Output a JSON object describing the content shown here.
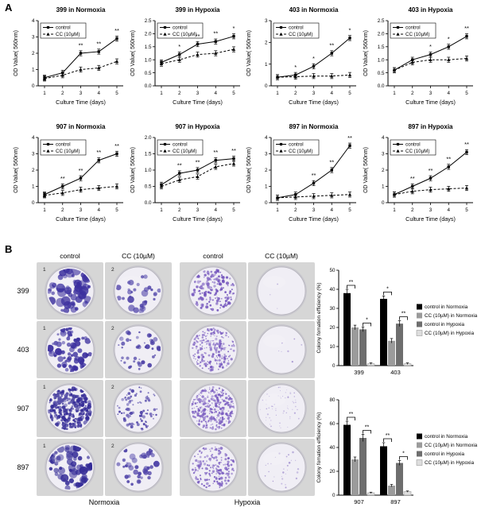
{
  "panel_a": {
    "label": "A"
  },
  "panel_b": {
    "label": "B",
    "col_headers": [
      "control",
      "CC (10µM)",
      "control",
      "CC (10µM)"
    ],
    "row_labels": [
      "399",
      "403",
      "907",
      "897"
    ],
    "group_labels": [
      "Normoxia",
      "Hypoxia"
    ],
    "dishes": [
      {
        "row": "399",
        "cells": [
          {
            "n": 55,
            "rmin": 2.0,
            "rmax": 6.0,
            "color": "#3b2f9e",
            "corner": "1"
          },
          {
            "n": 30,
            "rmin": 1.5,
            "rmax": 4.5,
            "color": "#4b3fa6",
            "corner": "2"
          },
          {
            "n": 170,
            "rmin": 0.8,
            "rmax": 2.2,
            "color": "#7050bb",
            "corner": ""
          },
          {
            "n": 3,
            "rmin": 0.5,
            "rmax": 1.0,
            "color": "#a493d0",
            "corner": ""
          }
        ]
      },
      {
        "row": "403",
        "cells": [
          {
            "n": 70,
            "rmin": 1.5,
            "rmax": 4.5,
            "color": "#3b2f9e",
            "corner": "1"
          },
          {
            "n": 42,
            "rmin": 1.0,
            "rmax": 3.2,
            "color": "#4b3fa6",
            "corner": "2"
          },
          {
            "n": 230,
            "rmin": 0.6,
            "rmax": 1.7,
            "color": "#7a5cc0",
            "corner": ""
          },
          {
            "n": 8,
            "rmin": 0.5,
            "rmax": 1.2,
            "color": "#a493d0",
            "corner": ""
          }
        ]
      },
      {
        "row": "907",
        "cells": [
          {
            "n": 260,
            "rmin": 1.0,
            "rmax": 2.8,
            "color": "#352c97",
            "corner": "1"
          },
          {
            "n": 90,
            "rmin": 0.8,
            "rmax": 2.2,
            "color": "#4b3fa6",
            "corner": "2"
          },
          {
            "n": 320,
            "rmin": 0.5,
            "rmax": 1.8,
            "color": "#7a5cc0",
            "corner": ""
          },
          {
            "n": 60,
            "rmin": 0.4,
            "rmax": 1.2,
            "color": "#b3a4d8",
            "corner": ""
          }
        ]
      },
      {
        "row": "897",
        "cells": [
          {
            "n": 62,
            "rmin": 2.0,
            "rmax": 5.5,
            "color": "#352c97",
            "corner": "1"
          },
          {
            "n": 38,
            "rmin": 1.5,
            "rmax": 4.0,
            "color": "#4b3fa6",
            "corner": "2"
          },
          {
            "n": 180,
            "rmin": 0.7,
            "rmax": 1.9,
            "color": "#7a5cc0",
            "corner": ""
          },
          {
            "n": 28,
            "rmin": 0.5,
            "rmax": 1.3,
            "color": "#a493d0",
            "corner": ""
          }
        ]
      }
    ]
  },
  "chart_data": [
    {
      "type": "line",
      "title": "399 in Normoxia",
      "x": [
        1,
        2,
        3,
        4,
        5
      ],
      "xlabel": "Culture Time (days)",
      "ylabel": "OD Value( 560nm)",
      "ylim": [
        0,
        4
      ],
      "yticks": [
        0,
        1,
        2,
        3,
        4
      ],
      "series": [
        {
          "name": "control",
          "values": [
            0.5,
            0.8,
            2.0,
            2.1,
            2.9
          ]
        },
        {
          "name": "CC (10µM)",
          "values": [
            0.45,
            0.65,
            1.0,
            1.1,
            1.5
          ]
        }
      ],
      "stars": {
        "3": "**",
        "4": "**",
        "5": "**"
      }
    },
    {
      "type": "line",
      "title": "399 in Hypoxia",
      "x": [
        1,
        2,
        3,
        4,
        5
      ],
      "xlabel": "Culture Time (days)",
      "ylabel": "OD Value( 560nm)",
      "ylim": [
        0,
        2.5
      ],
      "yticks": [
        0,
        0.5,
        1,
        1.5,
        2,
        2.5
      ],
      "series": [
        {
          "name": "control",
          "values": [
            0.9,
            1.2,
            1.6,
            1.7,
            1.9
          ]
        },
        {
          "name": "CC (10µM)",
          "values": [
            0.85,
            1.0,
            1.2,
            1.25,
            1.4
          ]
        }
      ],
      "stars": {
        "2": "*",
        "3": "**",
        "4": "**",
        "5": "*"
      }
    },
    {
      "type": "line",
      "title": "403 in Normoxia",
      "x": [
        1,
        2,
        3,
        4,
        5
      ],
      "xlabel": "Culture Time (days)",
      "ylabel": "OD Value( 560nm)",
      "ylim": [
        0,
        3
      ],
      "yticks": [
        0,
        1,
        2,
        3
      ],
      "series": [
        {
          "name": "control",
          "values": [
            0.4,
            0.5,
            0.9,
            1.5,
            2.2
          ]
        },
        {
          "name": "CC (10µM)",
          "values": [
            0.4,
            0.42,
            0.45,
            0.45,
            0.5
          ]
        }
      ],
      "stars": {
        "2": "*",
        "3": "*",
        "4": "**",
        "5": "*"
      }
    },
    {
      "type": "line",
      "title": "403 in Hypoxia",
      "x": [
        1,
        2,
        3,
        4,
        5
      ],
      "xlabel": "Culture Time (days)",
      "ylabel": "OD Value( 560nm)",
      "ylim": [
        0,
        2.5
      ],
      "yticks": [
        0,
        0.5,
        1,
        1.5,
        2,
        2.5
      ],
      "series": [
        {
          "name": "control",
          "values": [
            0.6,
            1.0,
            1.2,
            1.5,
            1.9
          ]
        },
        {
          "name": "CC (10µM)",
          "values": [
            0.6,
            0.9,
            1.0,
            1.0,
            1.05
          ]
        }
      ],
      "stars": {
        "3": "*",
        "4": "*",
        "5": "**"
      }
    },
    {
      "type": "line",
      "title": "907 in Normoxia",
      "x": [
        1,
        2,
        3,
        4,
        5
      ],
      "xlabel": "Culture Time (days)",
      "ylabel": "OD Value( 560nm)",
      "ylim": [
        0,
        4
      ],
      "yticks": [
        0,
        1,
        2,
        3,
        4
      ],
      "series": [
        {
          "name": "control",
          "values": [
            0.5,
            1.0,
            1.5,
            2.6,
            3.0
          ]
        },
        {
          "name": "CC (10µM)",
          "values": [
            0.45,
            0.6,
            0.8,
            0.9,
            1.0
          ]
        }
      ],
      "stars": {
        "2": "**",
        "3": "**",
        "4": "**",
        "5": "**"
      }
    },
    {
      "type": "line",
      "title": "907 in Hypoxia",
      "x": [
        1,
        2,
        3,
        4,
        5
      ],
      "xlabel": "Culture Time (days)",
      "ylabel": "OD Value( 560nm)",
      "ylim": [
        0,
        2
      ],
      "yticks": [
        0,
        0.5,
        1,
        1.5,
        2
      ],
      "series": [
        {
          "name": "control",
          "values": [
            0.55,
            0.9,
            1.0,
            1.3,
            1.35
          ]
        },
        {
          "name": "CC (10µM)",
          "values": [
            0.5,
            0.7,
            0.8,
            1.1,
            1.2
          ]
        }
      ],
      "stars": {
        "2": "**",
        "3": "**",
        "4": "**",
        "5": "**"
      }
    },
    {
      "type": "line",
      "title": "897 in Normoxia",
      "x": [
        1,
        2,
        3,
        4,
        5
      ],
      "xlabel": "Culture Time (days)",
      "ylabel": "OD Value( 560nm)",
      "ylim": [
        0,
        4
      ],
      "yticks": [
        0,
        1,
        2,
        3,
        4
      ],
      "series": [
        {
          "name": "control",
          "values": [
            0.3,
            0.5,
            1.2,
            2.0,
            3.5
          ]
        },
        {
          "name": "CC (10µM)",
          "values": [
            0.3,
            0.35,
            0.4,
            0.45,
            0.5
          ]
        }
      ],
      "stars": {
        "3": "**",
        "4": "**",
        "5": "**"
      }
    },
    {
      "type": "line",
      "title": "897 in Hypoxia",
      "x": [
        1,
        2,
        3,
        4,
        5
      ],
      "xlabel": "Culture Time (days)",
      "ylabel": "OD Value( 560nm)",
      "ylim": [
        0,
        4
      ],
      "yticks": [
        0,
        1,
        2,
        3,
        4
      ],
      "series": [
        {
          "name": "control",
          "values": [
            0.5,
            1.0,
            1.5,
            2.2,
            3.1
          ]
        },
        {
          "name": "CC (10µM)",
          "values": [
            0.5,
            0.7,
            0.8,
            0.85,
            0.9
          ]
        }
      ],
      "stars": {
        "2": "**",
        "3": "**",
        "4": "**",
        "5": "**"
      }
    },
    {
      "type": "bar",
      "ylabel": "Colony fomation efficiency (%)",
      "categories": [
        "399",
        "403"
      ],
      "ylim": [
        0,
        50
      ],
      "yticks": [
        0,
        10,
        20,
        30,
        40,
        50
      ],
      "series": [
        {
          "name": "control in Normoxia",
          "color": "#000000",
          "values": [
            38,
            35
          ],
          "errors": [
            2,
            1.5
          ]
        },
        {
          "name": "CC (10µM) in Normoxia",
          "color": "#9b9b9b",
          "values": [
            20,
            13
          ],
          "errors": [
            1.2,
            1.2
          ]
        },
        {
          "name": "control in Hypoxia",
          "color": "#6e6e6e",
          "values": [
            19,
            22
          ],
          "errors": [
            1.2,
            1.5
          ]
        },
        {
          "name": "CC (10µM) in Hypoxia",
          "color": "#dedede",
          "values": [
            1,
            1
          ],
          "errors": [
            0.4,
            0.4
          ]
        }
      ],
      "brackets": [
        {
          "cat": 0,
          "a": 0,
          "b": 1,
          "label": "**"
        },
        {
          "cat": 0,
          "a": 2,
          "b": 3,
          "label": "*"
        },
        {
          "cat": 1,
          "a": 0,
          "b": 1,
          "label": "*"
        },
        {
          "cat": 1,
          "a": 2,
          "b": 3,
          "label": "**"
        }
      ]
    },
    {
      "type": "bar",
      "ylabel": "Colony fomation efficiency (%)",
      "categories": [
        "907",
        "897"
      ],
      "ylim": [
        0,
        80
      ],
      "yticks": [
        0,
        20,
        40,
        60,
        80
      ],
      "series": [
        {
          "name": "control in Normoxia",
          "color": "#000000",
          "values": [
            59,
            41
          ],
          "errors": [
            3,
            3
          ]
        },
        {
          "name": "CC (10µM) in Normoxia",
          "color": "#9b9b9b",
          "values": [
            30,
            8
          ],
          "errors": [
            2,
            1
          ]
        },
        {
          "name": "control in Hypoxia",
          "color": "#6e6e6e",
          "values": [
            48,
            27
          ],
          "errors": [
            3,
            2
          ]
        },
        {
          "name": "CC (10µM) in Hypoxia",
          "color": "#dedede",
          "values": [
            2,
            3
          ],
          "errors": [
            0.5,
            0.5
          ]
        }
      ],
      "brackets": [
        {
          "cat": 0,
          "a": 0,
          "b": 1,
          "label": "**"
        },
        {
          "cat": 0,
          "a": 2,
          "b": 3,
          "label": "**"
        },
        {
          "cat": 1,
          "a": 0,
          "b": 1,
          "label": "**"
        },
        {
          "cat": 1,
          "a": 2,
          "b": 3,
          "label": "*"
        }
      ]
    }
  ]
}
